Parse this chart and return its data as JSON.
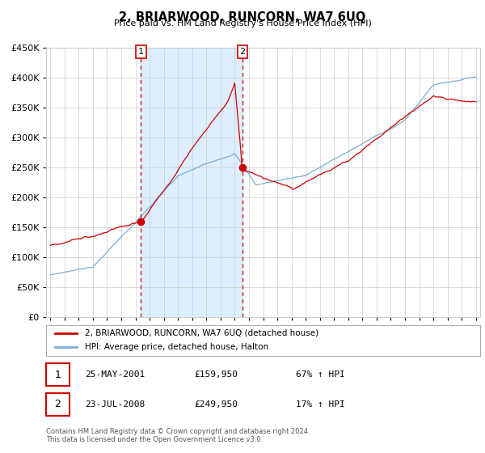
{
  "title": "2, BRIARWOOD, RUNCORN, WA7 6UQ",
  "subtitle": "Price paid vs. HM Land Registry's House Price Index (HPI)",
  "legend_line1": "2, BRIARWOOD, RUNCORN, WA7 6UQ (detached house)",
  "legend_line2": "HPI: Average price, detached house, Halton",
  "sale1_date": "25-MAY-2001",
  "sale1_price": "£159,950",
  "sale1_hpi": "67% ↑ HPI",
  "sale1_year": 2001.38,
  "sale1_value": 159950,
  "sale2_date": "23-JUL-2008",
  "sale2_price": "£249,950",
  "sale2_hpi": "17% ↑ HPI",
  "sale2_year": 2008.54,
  "sale2_value": 249950,
  "red_color": "#cc0000",
  "blue_color": "#7bafd4",
  "bg_shade_color": "#ddeeff",
  "ylim": [
    0,
    450000
  ],
  "xlim_start": 1994.7,
  "xlim_end": 2025.3,
  "footnote1": "Contains HM Land Registry data © Crown copyright and database right 2024.",
  "footnote2": "This data is licensed under the Open Government Licence v3.0."
}
